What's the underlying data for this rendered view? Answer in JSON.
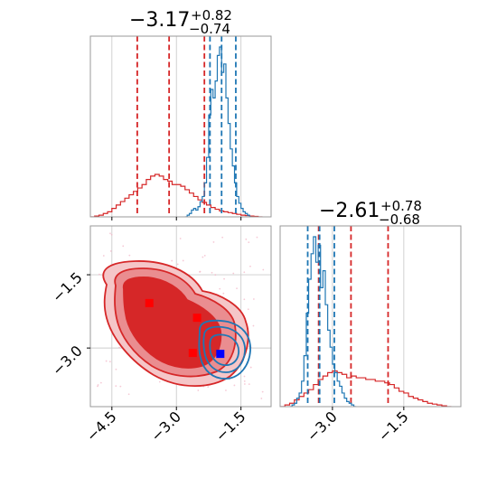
{
  "chart_data": {
    "type": "corner",
    "panels": [
      {
        "id": "hist_x",
        "type": "histogram",
        "title": {
          "median": "−3.17",
          "upper": "+0.82",
          "lower": "−0.74"
        },
        "xlim": [
          -5.0,
          -0.8
        ],
        "series": [
          {
            "color": "#d62728",
            "x": [
              -5.0,
              -4.9,
              -4.8,
              -4.7,
              -4.6,
              -4.5,
              -4.4,
              -4.3,
              -4.2,
              -4.1,
              -4.0,
              -3.9,
              -3.8,
              -3.7,
              -3.6,
              -3.5,
              -3.4,
              -3.3,
              -3.2,
              -3.1,
              -3.0,
              -2.9,
              -2.8,
              -2.7,
              -2.6,
              -2.5,
              -2.4,
              -2.3,
              -2.2,
              -2.1,
              -2.0,
              -1.9,
              -1.8,
              -1.7,
              -1.6,
              -1.5,
              -1.4,
              -1.3,
              -1.2,
              -1.1
            ],
            "values": [
              0.0,
              0.005,
              0.01,
              0.02,
              0.03,
              0.05,
              0.07,
              0.09,
              0.11,
              0.13,
              0.15,
              0.17,
              0.19,
              0.22,
              0.24,
              0.25,
              0.24,
              0.22,
              0.21,
              0.19,
              0.19,
              0.18,
              0.16,
              0.14,
              0.12,
              0.1,
              0.085,
              0.07,
              0.055,
              0.045,
              0.035,
              0.03,
              0.025,
              0.02,
              0.015,
              0.01,
              0.008,
              0.005,
              0.003,
              0.0
            ],
            "quantiles": [
              -3.91,
              -3.17,
              -2.35
            ]
          },
          {
            "color": "#1f77b4",
            "x": [
              -2.8,
              -2.75,
              -2.7,
              -2.65,
              -2.6,
              -2.55,
              -2.5,
              -2.45,
              -2.4,
              -2.35,
              -2.3,
              -2.25,
              -2.2,
              -2.15,
              -2.1,
              -2.05,
              -2.0,
              -1.95,
              -1.9,
              -1.85,
              -1.8,
              -1.75,
              -1.7,
              -1.65,
              -1.6,
              -1.55,
              -1.5,
              -1.45,
              -1.4,
              -1.35,
              -1.3
            ],
            "values": [
              0.0,
              0.01,
              0.02,
              0.04,
              0.05,
              0.04,
              0.06,
              0.09,
              0.12,
              0.2,
              0.35,
              0.6,
              0.75,
              0.7,
              0.8,
              0.95,
              1.0,
              0.85,
              0.9,
              0.7,
              0.55,
              0.4,
              0.3,
              0.2,
              0.12,
              0.08,
              0.05,
              0.03,
              0.02,
              0.01,
              0.0
            ],
            "quantiles": [
              -2.22,
              -1.95,
              -1.62
            ]
          }
        ]
      },
      {
        "id": "hist_y",
        "type": "histogram",
        "title": {
          "median": "−2.61",
          "upper": "+0.78",
          "lower": "−0.68"
        },
        "xlim": [
          -4.1,
          -0.3
        ],
        "xticks": [
          "−3.0",
          "−1.5"
        ],
        "xtick_values": [
          -3.0,
          -1.5
        ],
        "series": [
          {
            "color": "#d62728",
            "x": [
              -4.1,
              -4.0,
              -3.9,
              -3.8,
              -3.7,
              -3.6,
              -3.5,
              -3.4,
              -3.3,
              -3.2,
              -3.1,
              -3.0,
              -2.9,
              -2.8,
              -2.7,
              -2.6,
              -2.5,
              -2.4,
              -2.3,
              -2.2,
              -2.1,
              -2.0,
              -1.9,
              -1.8,
              -1.7,
              -1.6,
              -1.5,
              -1.4,
              -1.3,
              -1.2,
              -1.1,
              -1.0,
              -0.9,
              -0.8,
              -0.7,
              -0.6
            ],
            "values": [
              0.0,
              0.01,
              0.02,
              0.04,
              0.06,
              0.08,
              0.1,
              0.13,
              0.16,
              0.18,
              0.2,
              0.21,
              0.2,
              0.19,
              0.17,
              0.18,
              0.17,
              0.17,
              0.16,
              0.16,
              0.15,
              0.15,
              0.14,
              0.13,
              0.11,
              0.09,
              0.08,
              0.06,
              0.05,
              0.04,
              0.03,
              0.02,
              0.015,
              0.01,
              0.005,
              0.0
            ],
            "quantiles": [
              -3.29,
              -2.61,
              -1.83
            ]
          },
          {
            "color": "#1f77b4",
            "x": [
              -3.9,
              -3.85,
              -3.8,
              -3.75,
              -3.7,
              -3.65,
              -3.6,
              -3.55,
              -3.5,
              -3.45,
              -3.4,
              -3.35,
              -3.3,
              -3.25,
              -3.2,
              -3.15,
              -3.1,
              -3.05,
              -3.0,
              -2.95,
              -2.9,
              -2.85,
              -2.8,
              -2.75,
              -2.7,
              -2.65,
              -2.6,
              -2.55
            ],
            "values": [
              0.0,
              0.01,
              0.02,
              0.05,
              0.08,
              0.15,
              0.3,
              0.55,
              0.75,
              0.9,
              1.0,
              0.85,
              0.95,
              0.7,
              0.8,
              0.6,
              0.45,
              0.35,
              0.25,
              0.2,
              0.15,
              0.12,
              0.08,
              0.05,
              0.03,
              0.02,
              0.01,
              0.0
            ],
            "quantiles": [
              -3.52,
              -3.27,
              -2.96
            ]
          }
        ]
      },
      {
        "id": "joint",
        "type": "contour",
        "xlim": [
          -5.0,
          -0.8
        ],
        "ylim": [
          -4.2,
          -0.5
        ],
        "xticks": [
          "−4.5",
          "−3.0",
          "−1.5"
        ],
        "xtick_values": [
          -4.5,
          -3.0,
          -1.5
        ],
        "yticks": [
          "−1.5",
          "−3.0"
        ],
        "ytick_values": [
          -1.5,
          -3.0
        ],
        "red_points": [
          [
            -3.63,
            -2.08
          ],
          [
            -2.52,
            -2.38
          ],
          [
            -2.62,
            -3.1
          ]
        ],
        "blue_points": [
          [
            -1.98,
            -3.12
          ]
        ]
      }
    ]
  }
}
